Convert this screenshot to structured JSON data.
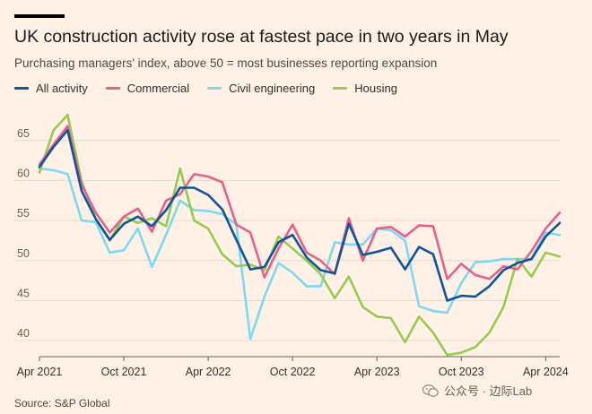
{
  "header": {
    "title": "UK construction activity rose at fastest pace in two years in May",
    "subtitle": "Purchasing managers' index, above 50 = most businesses reporting expansion"
  },
  "footer": {
    "source": "Source: S&P Global",
    "watermark": "公众号 · 边际Lab"
  },
  "chart_data": {
    "type": "line",
    "title": "UK construction activity rose at fastest pace in two years in May",
    "subtitle": "Purchasing managers' index, above 50 = most businesses reporting expansion",
    "xlabel": "",
    "ylabel": "",
    "ylim": [
      38,
      68
    ],
    "yticks": [
      40,
      45,
      50,
      55,
      60,
      65
    ],
    "xticks": [
      {
        "index": 0,
        "label": "Apr 2021"
      },
      {
        "index": 6,
        "label": "Oct 2021"
      },
      {
        "index": 12,
        "label": "Apr 2022"
      },
      {
        "index": 18,
        "label": "Oct 2022"
      },
      {
        "index": 24,
        "label": "Apr 2023"
      },
      {
        "index": 30,
        "label": "Oct 2023"
      },
      {
        "index": 36,
        "label": "Apr 2024"
      }
    ],
    "x": [
      "Apr 2021",
      "May 2021",
      "Jun 2021",
      "Jul 2021",
      "Aug 2021",
      "Sep 2021",
      "Oct 2021",
      "Nov 2021",
      "Dec 2021",
      "Jan 2022",
      "Feb 2022",
      "Mar 2022",
      "Apr 2022",
      "May 2022",
      "Jun 2022",
      "Jul 2022",
      "Aug 2022",
      "Sep 2022",
      "Oct 2022",
      "Nov 2022",
      "Dec 2022",
      "Jan 2023",
      "Feb 2023",
      "Mar 2023",
      "Apr 2023",
      "May 2023",
      "Jun 2023",
      "Jul 2023",
      "Aug 2023",
      "Sep 2023",
      "Oct 2023",
      "Nov 2023",
      "Dec 2023",
      "Jan 2024",
      "Feb 2024",
      "Mar 2024",
      "Apr 2024",
      "May 2024"
    ],
    "grid": true,
    "series": [
      {
        "name": "Civil engineering",
        "color": "#7FD8F1",
        "values": [
          61.5,
          61.3,
          60.8,
          55.0,
          54.8,
          51.0,
          51.3,
          54.0,
          49.2,
          53.2,
          57.5,
          56.3,
          56.2,
          55.8,
          54.5,
          40.2,
          45.5,
          49.7,
          48.5,
          46.8,
          46.8,
          52.3,
          52.0,
          52.0,
          54.0,
          53.8,
          52.5,
          44.3,
          43.7,
          43.5,
          47.2,
          49.8,
          49.9,
          50.2,
          50.2,
          50.2,
          53.5,
          53.2
        ]
      },
      {
        "name": "Housing",
        "color": "#96CC4E",
        "values": [
          61.0,
          66.3,
          68.2,
          59.9,
          55.2,
          52.5,
          55.5,
          54.7,
          55.3,
          54.3,
          61.5,
          55.0,
          54.0,
          50.8,
          49.3,
          49.5,
          48.8,
          53.0,
          51.5,
          50.0,
          48.3,
          45.3,
          48.0,
          44.2,
          43.0,
          42.8,
          39.8,
          43.0,
          41.0,
          38.2,
          38.5,
          39.2,
          41.0,
          44.2,
          50.2,
          48.0,
          51.0,
          50.5
        ]
      },
      {
        "name": "Commercial",
        "color": "#E3628D",
        "values": [
          62.0,
          64.5,
          66.8,
          59.5,
          56.0,
          53.5,
          55.5,
          56.5,
          53.6,
          57.5,
          58.3,
          60.8,
          60.5,
          59.8,
          54.5,
          53.5,
          47.9,
          51.5,
          54.5,
          51.0,
          50.0,
          48.3,
          55.3,
          50.0,
          54.0,
          54.2,
          53.0,
          54.4,
          54.3,
          47.7,
          49.6,
          48.2,
          47.7,
          49.3,
          48.9,
          51.2,
          54.0,
          56.0
        ]
      },
      {
        "name": "All activity",
        "color": "#0F5499",
        "values": [
          61.7,
          64.2,
          66.3,
          58.7,
          55.2,
          52.6,
          54.6,
          55.5,
          54.3,
          56.3,
          59.1,
          59.1,
          58.2,
          56.4,
          52.6,
          48.9,
          49.2,
          52.3,
          53.2,
          50.4,
          48.8,
          48.4,
          54.6,
          50.7,
          51.1,
          51.6,
          48.9,
          51.7,
          50.8,
          45.0,
          45.6,
          45.5,
          46.8,
          48.8,
          49.7,
          50.2,
          53.0,
          54.7
        ]
      }
    ],
    "legend": [
      "All activity",
      "Commercial",
      "Civil engineering",
      "Housing"
    ],
    "legend_position": "top-left"
  }
}
